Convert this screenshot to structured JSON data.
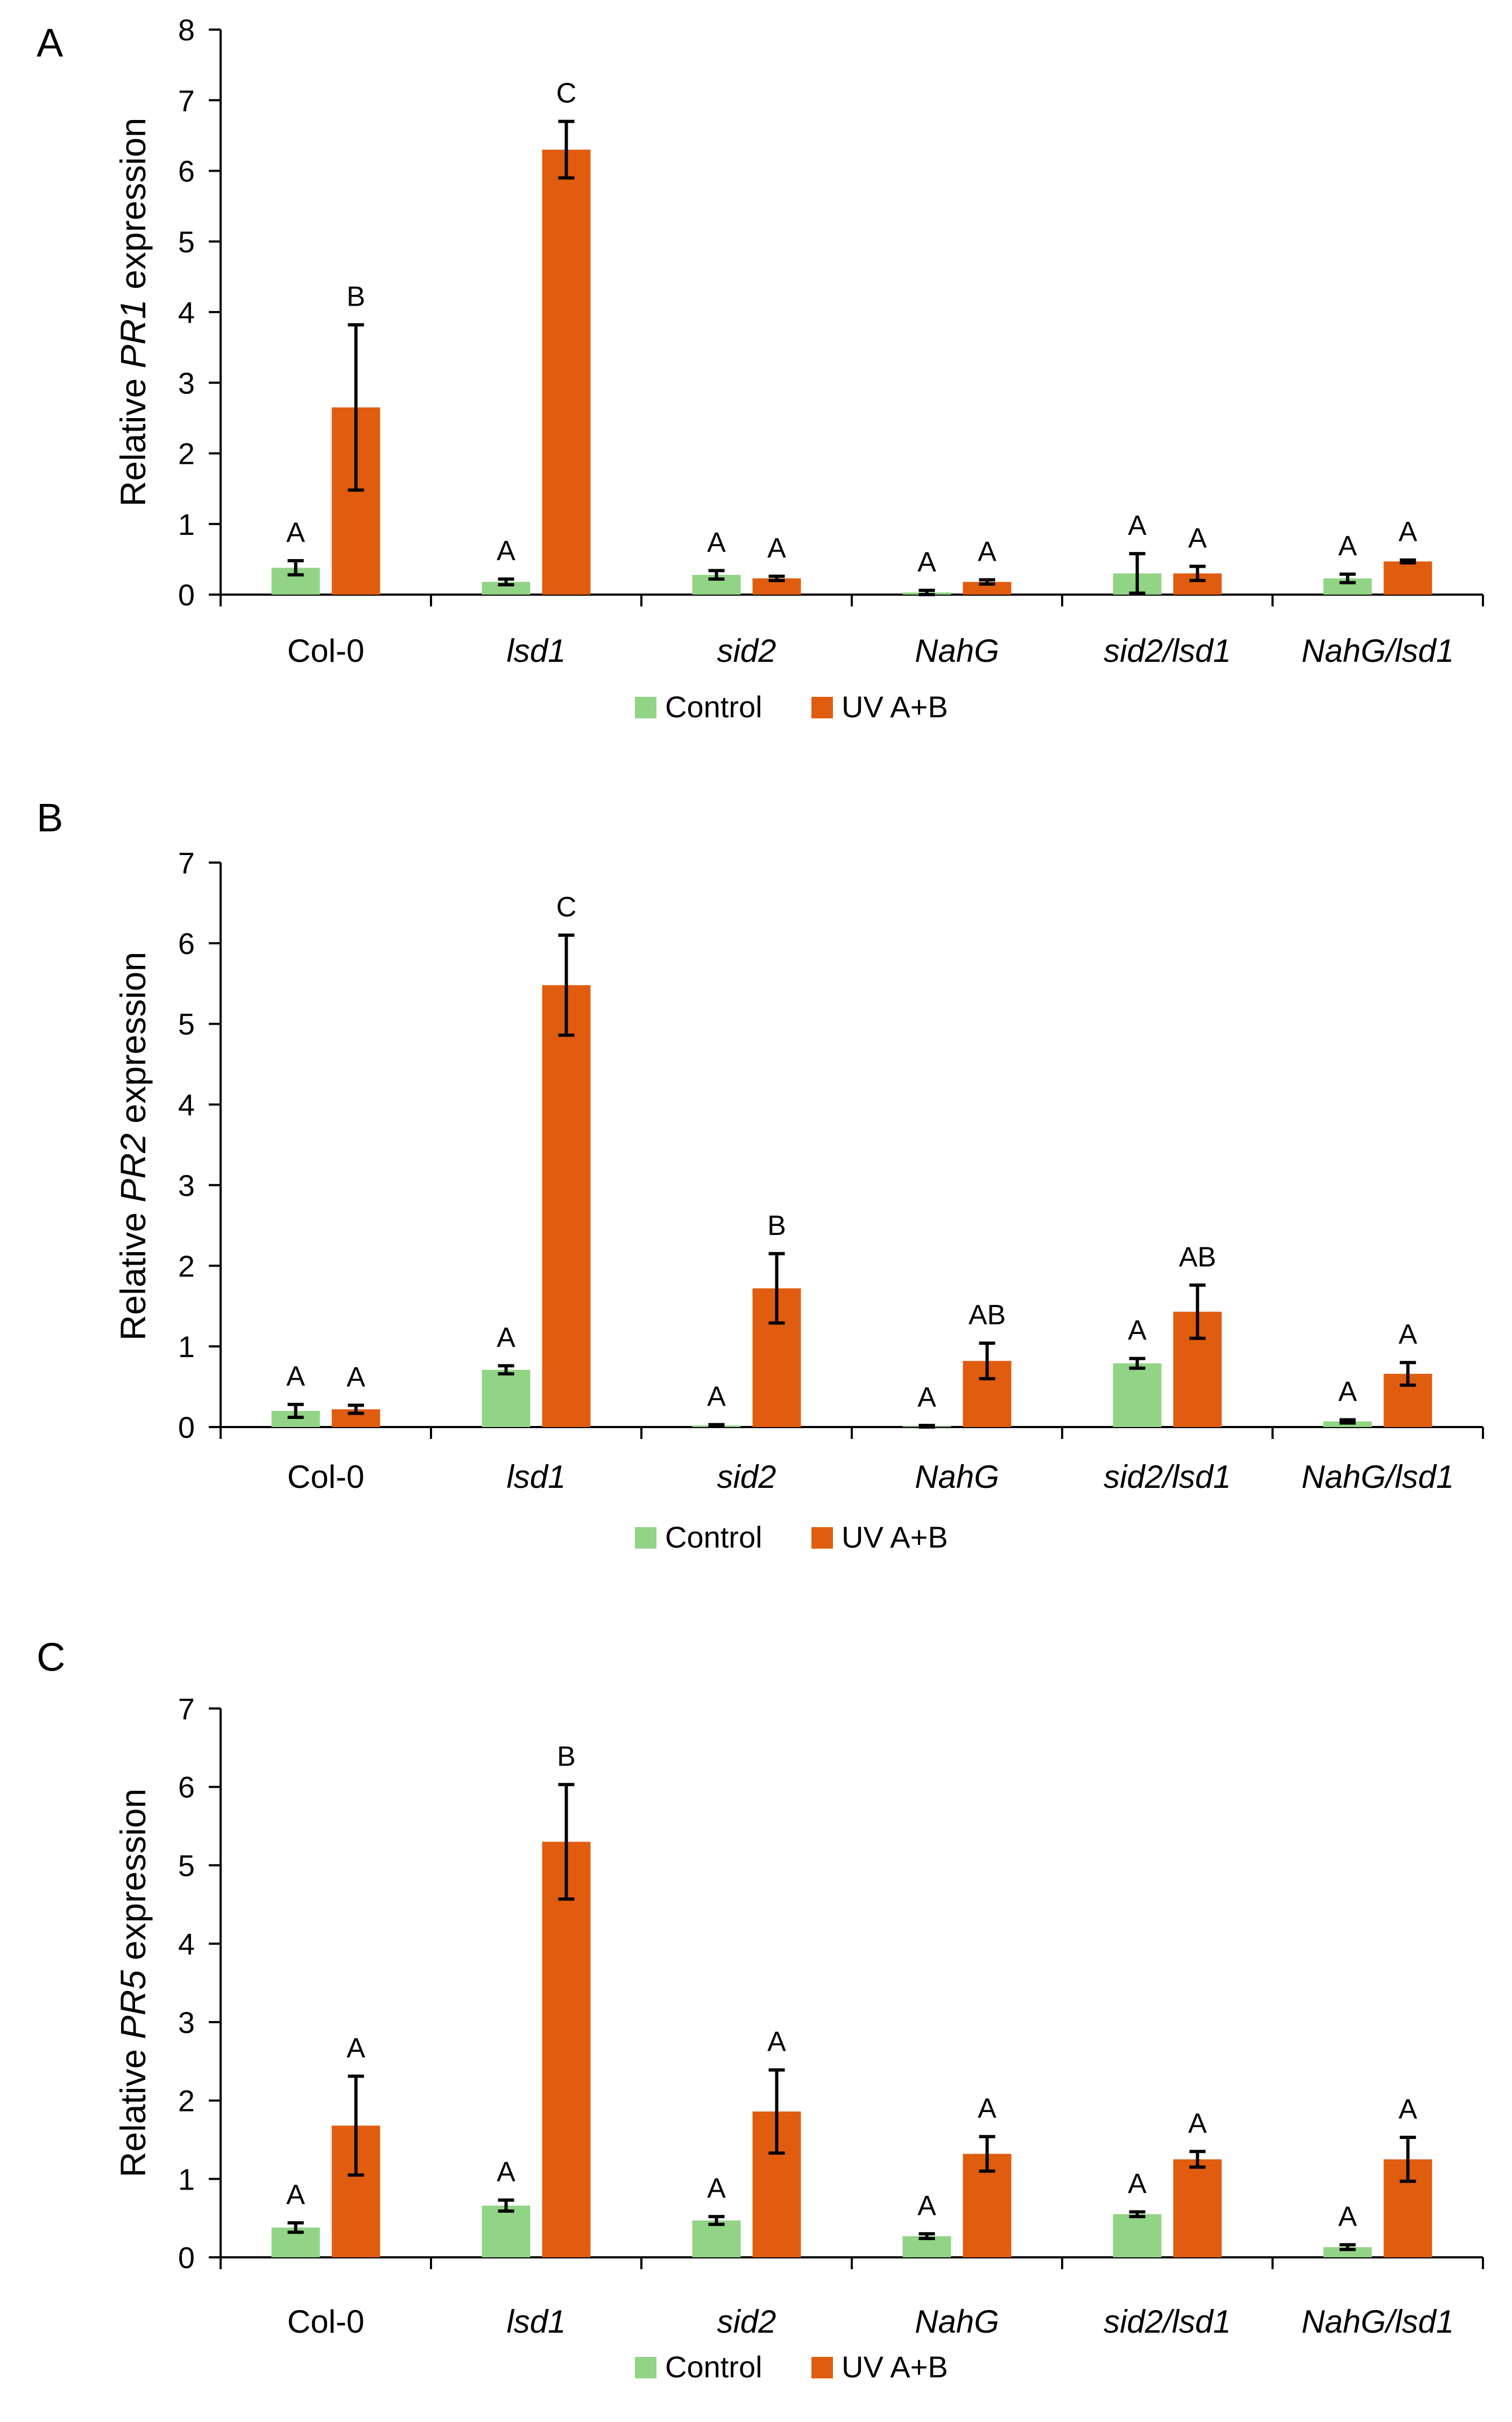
{
  "chart_data": [
    {
      "panel": "A",
      "type": "bar",
      "ylabel_pre": "Relative ",
      "ylabel_gene": "PR1",
      "ylabel_post": " expression",
      "ylim": [
        0,
        8
      ],
      "yticks": [
        0,
        1,
        2,
        3,
        4,
        5,
        6,
        7,
        8
      ],
      "categories": [
        "Col-0",
        "lsd1",
        "sid2",
        "NahG",
        "sid2/lsd1",
        "NahG/lsd1"
      ],
      "series": [
        {
          "name": "Control",
          "color": "#92d486",
          "values": [
            0.38,
            0.18,
            0.28,
            0.03,
            0.3,
            0.23
          ],
          "errors": [
            0.1,
            0.04,
            0.06,
            0.03,
            0.28,
            0.06
          ],
          "letters": [
            "A",
            "A",
            "A",
            "A",
            "A",
            "A"
          ]
        },
        {
          "name": "UV A+B",
          "color": "#e05d0f",
          "values": [
            2.65,
            6.3,
            0.23,
            0.18,
            0.3,
            0.47
          ],
          "errors": [
            1.17,
            0.4,
            0.03,
            0.03,
            0.1,
            0.02
          ],
          "letters": [
            "B",
            "C",
            "A",
            "A",
            "A",
            "A"
          ]
        }
      ]
    },
    {
      "panel": "B",
      "type": "bar",
      "ylabel_pre": "Relative ",
      "ylabel_gene": "PR2",
      "ylabel_post": " expression",
      "ylim": [
        0,
        7
      ],
      "yticks": [
        0,
        1,
        2,
        3,
        4,
        5,
        6,
        7
      ],
      "categories": [
        "Col-0",
        "lsd1",
        "sid2",
        "NahG",
        "sid2/lsd1",
        "NahG/lsd1"
      ],
      "series": [
        {
          "name": "Control",
          "color": "#92d486",
          "values": [
            0.2,
            0.71,
            0.02,
            0.01,
            0.79,
            0.07
          ],
          "errors": [
            0.08,
            0.05,
            0.01,
            0.01,
            0.06,
            0.02
          ],
          "letters": [
            "A",
            "A",
            "A",
            "A",
            "A",
            "A"
          ]
        },
        {
          "name": "UV A+B",
          "color": "#e05d0f",
          "values": [
            0.22,
            5.48,
            1.72,
            0.82,
            1.43,
            0.66
          ],
          "errors": [
            0.05,
            0.62,
            0.43,
            0.22,
            0.33,
            0.14
          ],
          "letters": [
            "A",
            "C",
            "B",
            "AB",
            "AB",
            "A"
          ]
        }
      ]
    },
    {
      "panel": "C",
      "type": "bar",
      "ylabel_pre": "Relative ",
      "ylabel_gene": "PR5",
      "ylabel_post": " expression",
      "ylim": [
        0,
        7
      ],
      "yticks": [
        0,
        1,
        2,
        3,
        4,
        5,
        6,
        7
      ],
      "categories": [
        "Col-0",
        "lsd1",
        "sid2",
        "NahG",
        "sid2/lsd1",
        "NahG/lsd1"
      ],
      "series": [
        {
          "name": "Control",
          "color": "#92d486",
          "values": [
            0.38,
            0.66,
            0.47,
            0.27,
            0.55,
            0.13
          ],
          "errors": [
            0.06,
            0.07,
            0.05,
            0.03,
            0.03,
            0.03
          ],
          "letters": [
            "A",
            "A",
            "A",
            "A",
            "A",
            "A"
          ]
        },
        {
          "name": "UV A+B",
          "color": "#e05d0f",
          "values": [
            1.68,
            5.3,
            1.86,
            1.32,
            1.25,
            1.25
          ],
          "errors": [
            0.63,
            0.73,
            0.53,
            0.22,
            0.1,
            0.28
          ],
          "letters": [
            "A",
            "B",
            "A",
            "A",
            "A",
            "A"
          ]
        }
      ]
    }
  ]
}
